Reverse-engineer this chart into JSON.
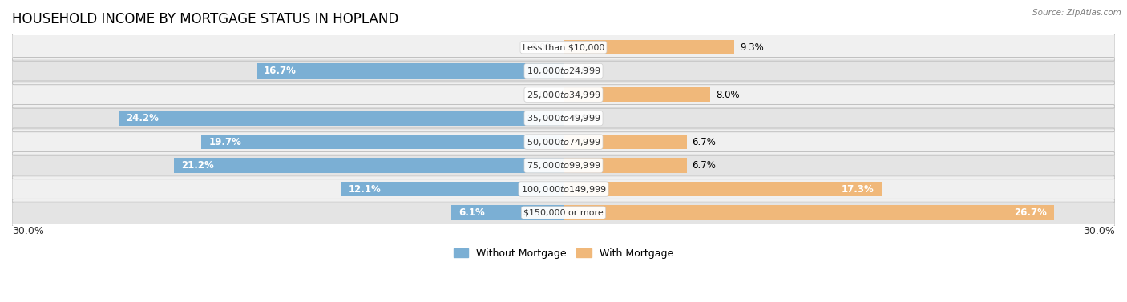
{
  "title": "HOUSEHOLD INCOME BY MORTGAGE STATUS IN HOPLAND",
  "source": "Source: ZipAtlas.com",
  "categories": [
    "Less than $10,000",
    "$10,000 to $24,999",
    "$25,000 to $34,999",
    "$35,000 to $49,999",
    "$50,000 to $74,999",
    "$75,000 to $99,999",
    "$100,000 to $149,999",
    "$150,000 or more"
  ],
  "without_mortgage": [
    0.0,
    16.7,
    0.0,
    24.2,
    19.7,
    21.2,
    12.1,
    6.1
  ],
  "with_mortgage": [
    9.3,
    0.0,
    8.0,
    0.0,
    6.7,
    6.7,
    17.3,
    26.7
  ],
  "without_color": "#7bafd4",
  "with_color": "#f0b87a",
  "background_row_light": "#f0f0f0",
  "background_row_dark": "#e4e4e4",
  "xlim": 30.0,
  "legend_without": "Without Mortgage",
  "legend_with": "With Mortgage",
  "title_fontsize": 12,
  "label_fontsize": 8.5,
  "category_fontsize": 8.0,
  "tick_fontsize": 9
}
